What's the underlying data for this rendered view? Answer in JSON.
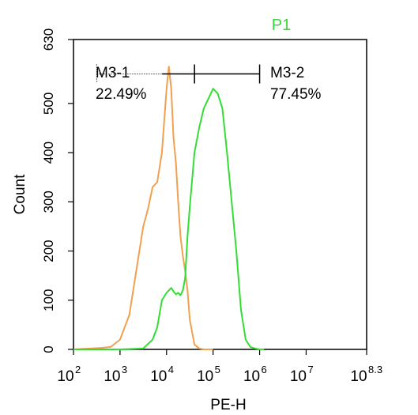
{
  "chart_data": {
    "type": "line",
    "title": "P1",
    "title_color": "#39d639",
    "xlabel": "PE-H",
    "ylabel": "Count",
    "x_scale": "log",
    "xlim": [
      100,
      199526231
    ],
    "ylim": [
      0,
      630
    ],
    "y_ticks": [
      0,
      100,
      200,
      300,
      400,
      500,
      630
    ],
    "x_ticks": [
      {
        "value": 100,
        "base": "10",
        "exp": "2"
      },
      {
        "value": 1000,
        "base": "10",
        "exp": "3"
      },
      {
        "value": 10000,
        "base": "10",
        "exp": "4"
      },
      {
        "value": 100000,
        "base": "10",
        "exp": "5"
      },
      {
        "value": 1000000,
        "base": "10",
        "exp": "6"
      },
      {
        "value": 10000000,
        "base": "10",
        "exp": "7"
      },
      {
        "value": 199526231,
        "base": "10",
        "exp": "8.3"
      }
    ],
    "grid": false,
    "series": [
      {
        "color": "#f0a050",
        "x": [
          100,
          398,
          631,
          1000,
          1585,
          2512,
          3162,
          3981,
          5012,
          6310,
          7943,
          10000,
          11220,
          12589,
          14125,
          15849,
          17783,
          19953,
          22387,
          25119,
          28184,
          31623,
          39811,
          50119,
          63096,
          79433,
          100000
        ],
        "y": [
          0,
          3,
          5,
          20,
          70,
          190,
          250,
          285,
          330,
          340,
          400,
          530,
          575,
          530,
          430,
          380,
          300,
          230,
          190,
          160,
          120,
          60,
          10,
          2,
          0,
          0,
          0
        ]
      },
      {
        "color": "#33dd33",
        "x": [
          100,
          1000,
          3162,
          5012,
          6310,
          7943,
          10000,
          12589,
          14125,
          15849,
          17783,
          19953,
          22387,
          25119,
          28184,
          31623,
          39811,
          50119,
          63096,
          79433,
          100000,
          125893,
          158489,
          199526,
          251189,
          316228,
          398107,
          501187,
          630957,
          794328,
          1000000,
          1258925
        ],
        "y": [
          0,
          0,
          2,
          20,
          45,
          100,
          115,
          125,
          118,
          112,
          115,
          110,
          120,
          145,
          230,
          290,
          400,
          450,
          490,
          510,
          530,
          520,
          490,
          400,
          300,
          200,
          80,
          20,
          5,
          2,
          0,
          0
        ]
      }
    ],
    "gates": [
      {
        "name": "M3-1",
        "percent": "22.49%",
        "x_from": 316,
        "x_to": 39811,
        "y": 560
      },
      {
        "name": "M3-2",
        "percent": "77.45%",
        "x_from": 39811,
        "x_to": 1000000,
        "y": 560
      }
    ]
  }
}
